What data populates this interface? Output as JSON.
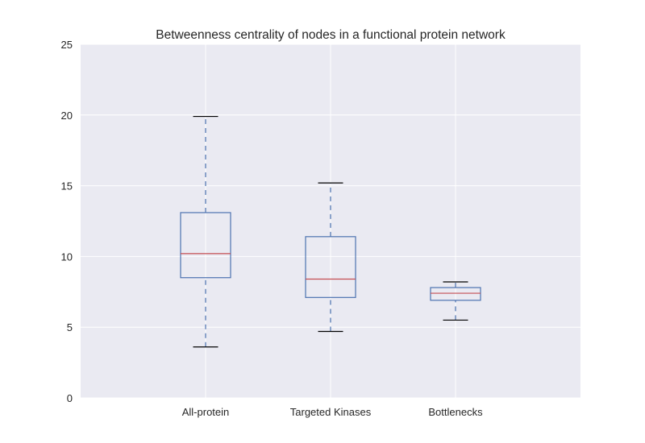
{
  "chart_data": {
    "type": "boxplot",
    "title": "Betweenness centrality of nodes in a functional protein network",
    "xlabel": "",
    "ylabel": "",
    "ylim": [
      0,
      25
    ],
    "yticks": [
      0,
      5,
      10,
      15,
      20,
      25
    ],
    "categories": [
      "All-protein",
      "Targeted Kinases",
      "Bottlenecks"
    ],
    "boxes": [
      {
        "category": "All-protein",
        "whisker_low": 3.6,
        "q1": 8.5,
        "median": 10.2,
        "q3": 13.1,
        "whisker_high": 19.9
      },
      {
        "category": "Targeted Kinases",
        "whisker_low": 4.7,
        "q1": 7.1,
        "median": 8.4,
        "q3": 11.4,
        "whisker_high": 15.2
      },
      {
        "category": "Bottlenecks",
        "whisker_low": 5.5,
        "q1": 6.9,
        "median": 7.4,
        "q3": 7.8,
        "whisker_high": 8.2
      }
    ],
    "grid": true,
    "colors": {
      "plot_background": "#eaeaf2",
      "grid": "#ffffff",
      "box": "#4c72b0",
      "median": "#c44e52",
      "cap": "#000000",
      "text": "#262626"
    }
  }
}
